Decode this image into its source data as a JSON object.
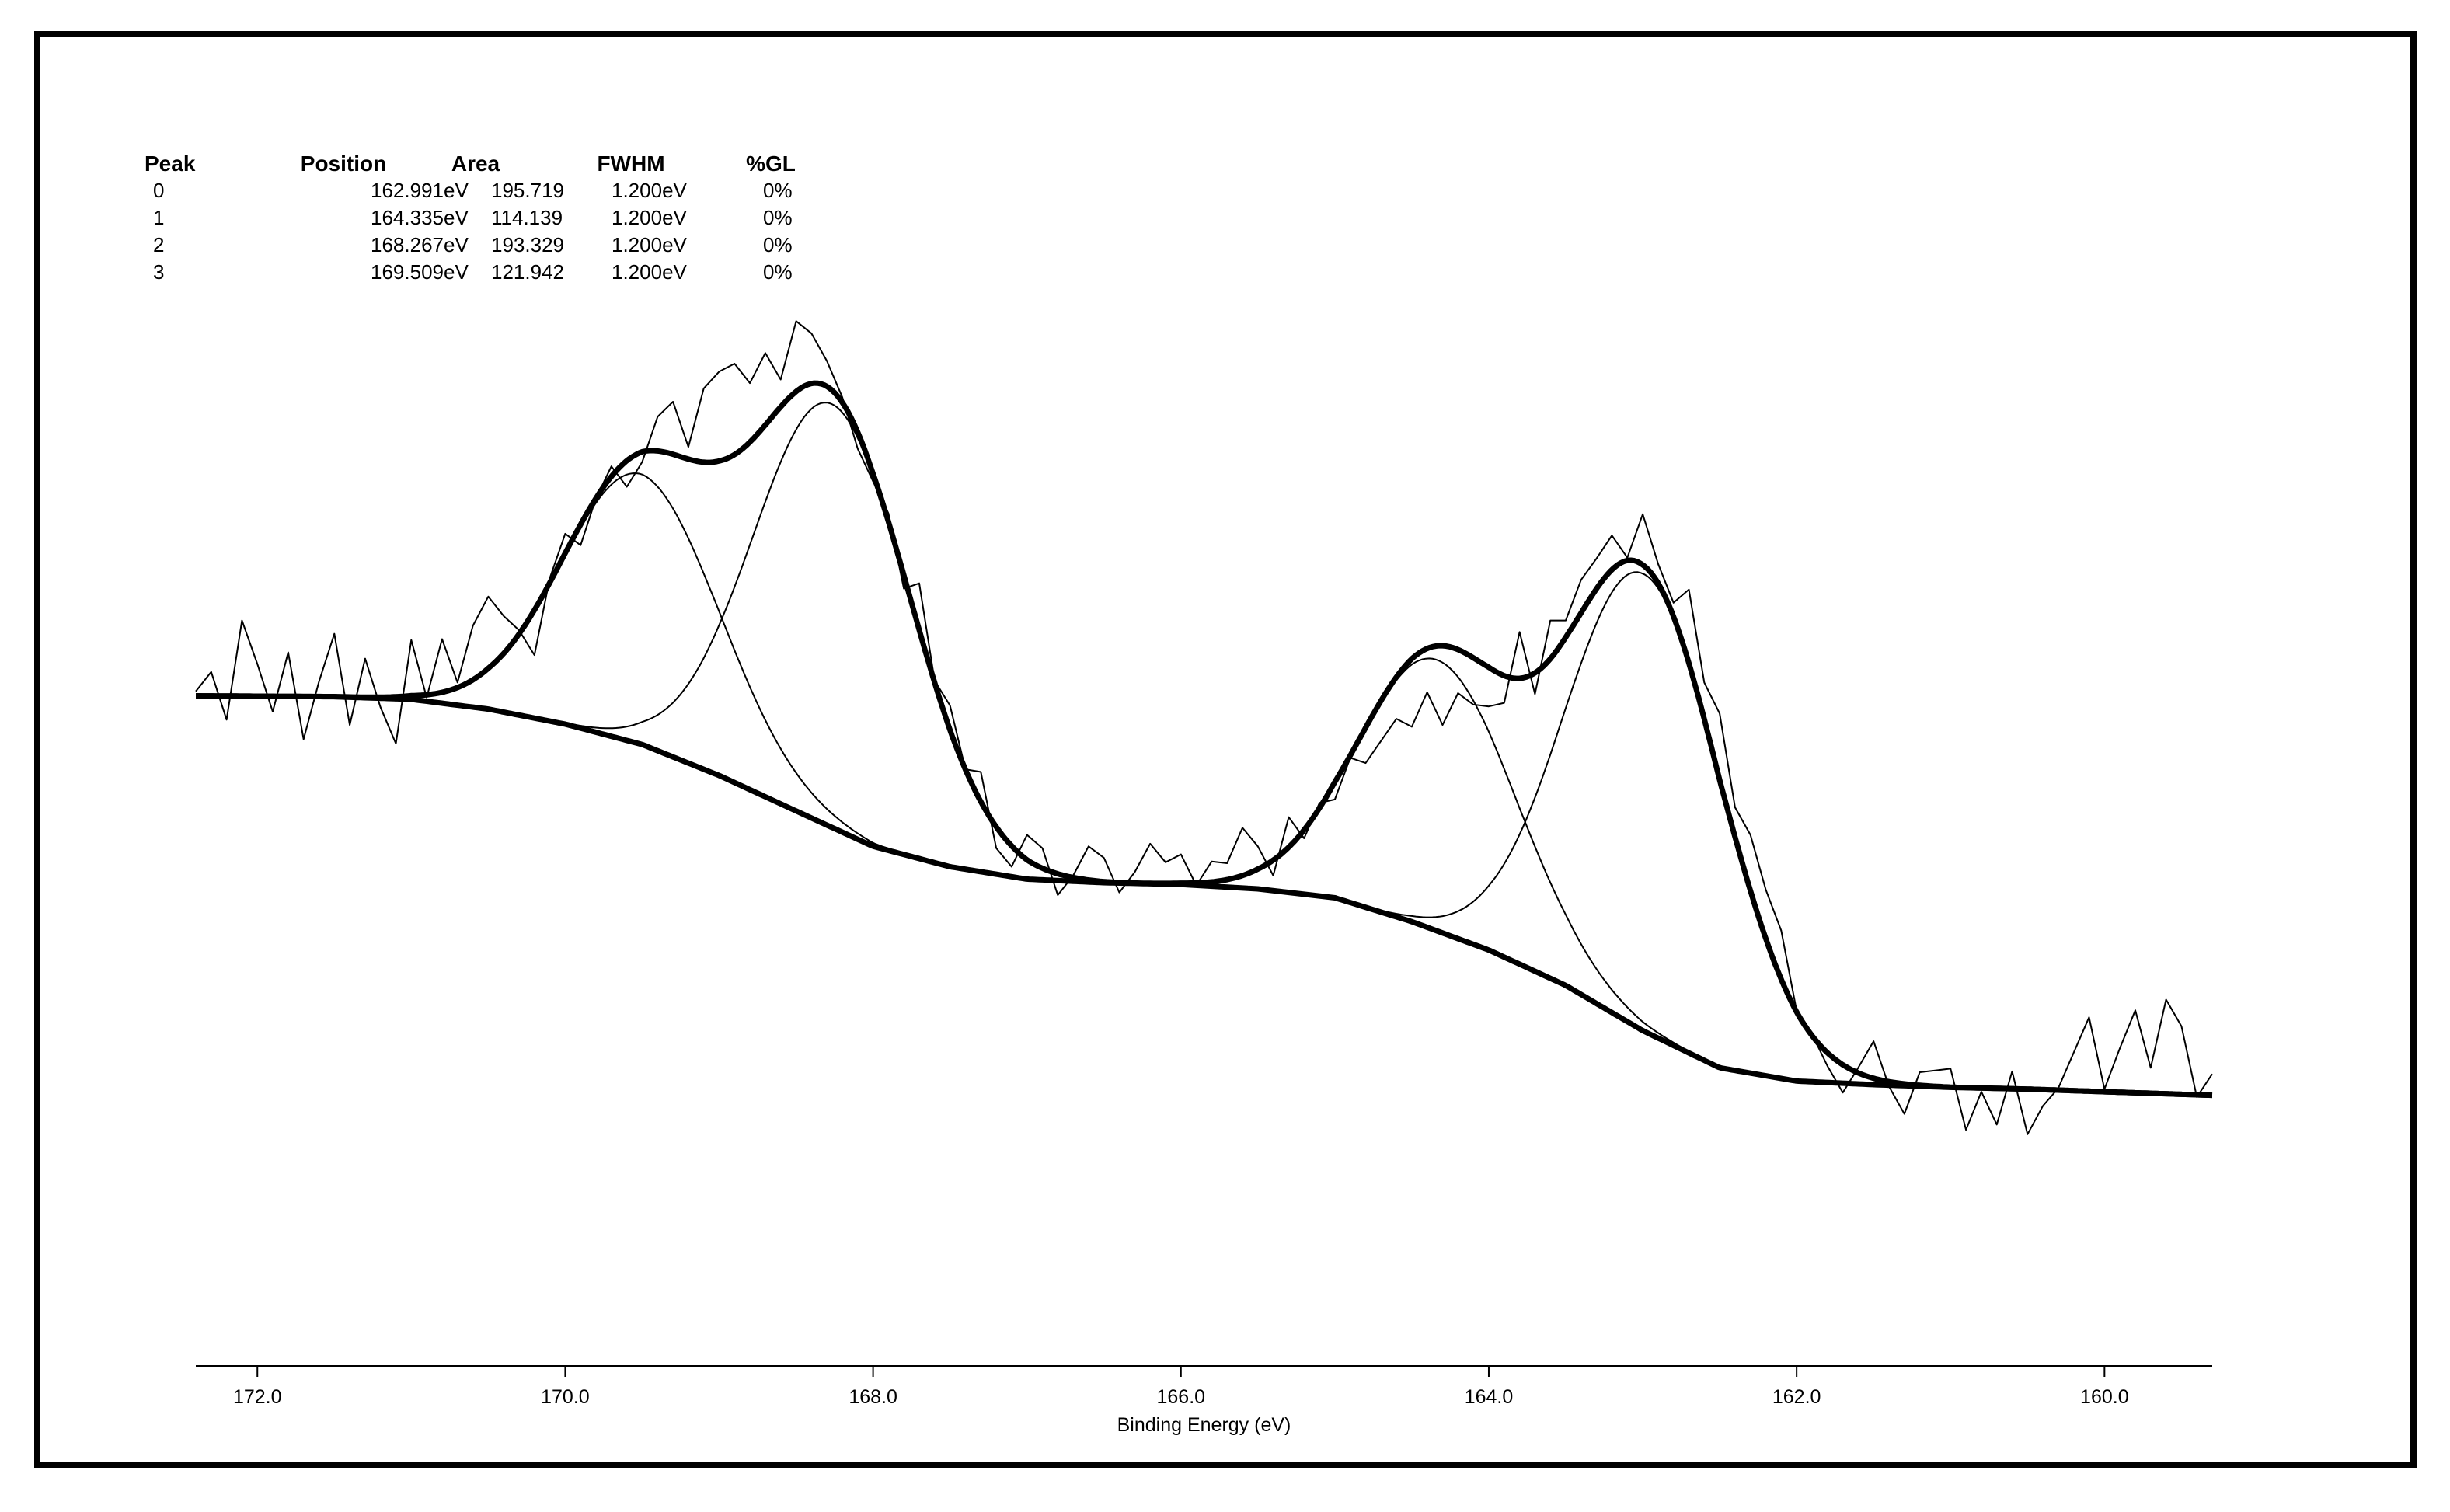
{
  "chart_data": {
    "type": "line",
    "title": "",
    "xlabel": "Binding Energy (eV)",
    "ylabel": "",
    "xlim": [
      172.4,
      159.3
    ],
    "x_reversed": true,
    "y_units": "normalized intensity",
    "ylim": [
      0,
      1
    ],
    "grid": false,
    "x_ticks": [
      "172.0",
      "170.0",
      "168.0",
      "166.0",
      "164.0",
      "162.0",
      "160.0"
    ],
    "peak_table": {
      "headers": [
        "Peak",
        "Position",
        "Area",
        "FWHM",
        "%GL"
      ],
      "rows": [
        [
          "0",
          "162.991eV",
          "195.719",
          "1.200eV",
          "0%"
        ],
        [
          "1",
          "164.335eV",
          "114.139",
          "1.200eV",
          "0%"
        ],
        [
          "2",
          "168.267eV",
          "193.329",
          "1.200eV",
          "0%"
        ],
        [
          "3",
          "169.509eV",
          "121.942",
          "1.200eV",
          "0%"
        ]
      ]
    },
    "fit_peaks": [
      {
        "peak": "0",
        "position": 162.991,
        "fwhm": 1.2,
        "height": 0.516
      },
      {
        "peak": "1",
        "position": 164.335,
        "fwhm": 1.2,
        "height": 0.306
      },
      {
        "peak": "2",
        "position": 168.267,
        "fwhm": 1.2,
        "height": 0.478
      },
      {
        "peak": "3",
        "position": 169.509,
        "fwhm": 1.2,
        "height": 0.305
      }
    ],
    "background": {
      "x": [
        172.4,
        171.5,
        171.0,
        170.5,
        170.0,
        169.5,
        169.0,
        168.5,
        168.0,
        167.5,
        167.0,
        166.5,
        166.0,
        165.5,
        165.0,
        164.5,
        164.0,
        163.5,
        163.0,
        162.5,
        162.0,
        161.5,
        161.0,
        160.5,
        160.0,
        159.3
      ],
      "y": [
        0.625,
        0.624,
        0.621,
        0.61,
        0.593,
        0.57,
        0.535,
        0.495,
        0.455,
        0.432,
        0.418,
        0.414,
        0.412,
        0.407,
        0.397,
        0.37,
        0.338,
        0.298,
        0.247,
        0.205,
        0.19,
        0.186,
        0.183,
        0.181,
        0.178,
        0.174
      ]
    },
    "raw_spectrum": {
      "x": [
        172.4,
        172.3,
        172.2,
        172.1,
        172.0,
        171.9,
        171.8,
        171.7,
        171.6,
        171.5,
        171.4,
        171.3,
        171.2,
        171.1,
        171.0,
        170.9,
        170.8,
        170.7,
        170.6,
        170.5,
        170.4,
        170.3,
        170.2,
        170.1,
        170.0,
        169.9,
        169.8,
        169.7,
        169.6,
        169.5,
        169.4,
        169.3,
        169.2,
        169.1,
        169.0,
        168.9,
        168.8,
        168.7,
        168.6,
        168.5,
        168.4,
        168.3,
        168.2,
        168.1,
        168.0,
        167.9,
        167.8,
        167.7,
        167.6,
        167.5,
        167.4,
        167.3,
        167.2,
        167.1,
        167.0,
        166.9,
        166.8,
        166.7,
        166.6,
        166.5,
        166.4,
        166.3,
        166.2,
        166.1,
        166.0,
        165.9,
        165.8,
        165.7,
        165.6,
        165.5,
        165.4,
        165.3,
        165.2,
        165.1,
        165.0,
        164.9,
        164.8,
        164.7,
        164.6,
        164.5,
        164.4,
        164.3,
        164.2,
        164.1,
        164.0,
        163.9,
        163.8,
        163.7,
        163.6,
        163.5,
        163.4,
        163.3,
        163.2,
        163.1,
        163.0,
        162.9,
        162.8,
        162.7,
        162.6,
        162.5,
        162.4,
        162.3,
        162.2,
        162.1,
        162.0,
        161.9,
        161.8,
        161.7,
        161.6,
        161.5,
        161.4,
        161.3,
        161.2,
        161.1,
        161.0,
        160.9,
        160.8,
        160.7,
        160.6,
        160.5,
        160.4,
        160.3,
        160.2,
        160.1,
        160.0,
        159.9,
        159.8,
        159.7,
        159.6,
        159.5,
        159.4,
        159.3
      ],
      "y": [
        0.63,
        0.652,
        0.598,
        0.71,
        0.661,
        0.607,
        0.674,
        0.576,
        0.641,
        0.695,
        0.592,
        0.667,
        0.612,
        0.571,
        0.688,
        0.623,
        0.689,
        0.64,
        0.704,
        0.737,
        0.715,
        0.699,
        0.671,
        0.758,
        0.808,
        0.795,
        0.848,
        0.884,
        0.861,
        0.889,
        0.94,
        0.957,
        0.906,
        0.972,
        0.991,
        1.0,
        0.978,
        1.012,
        0.982,
        1.048,
        1.034,
        1.003,
        0.962,
        0.904,
        0.867,
        0.831,
        0.746,
        0.752,
        0.642,
        0.614,
        0.542,
        0.539,
        0.453,
        0.432,
        0.468,
        0.453,
        0.4,
        0.422,
        0.455,
        0.442,
        0.403,
        0.426,
        0.458,
        0.437,
        0.446,
        0.411,
        0.438,
        0.436,
        0.476,
        0.455,
        0.422,
        0.488,
        0.464,
        0.504,
        0.508,
        0.555,
        0.549,
        0.574,
        0.599,
        0.59,
        0.629,
        0.592,
        0.628,
        0.615,
        0.613,
        0.617,
        0.697,
        0.627,
        0.71,
        0.71,
        0.756,
        0.78,
        0.806,
        0.781,
        0.83,
        0.774,
        0.73,
        0.745,
        0.64,
        0.605,
        0.499,
        0.468,
        0.406,
        0.36,
        0.269,
        0.243,
        0.207,
        0.177,
        0.205,
        0.235,
        0.184,
        0.153,
        0.2,
        0.202,
        0.204,
        0.135,
        0.178,
        0.141,
        0.201,
        0.13,
        0.162,
        0.182,
        0.222,
        0.262,
        0.181,
        0.227,
        0.27,
        0.205,
        0.282,
        0.252,
        0.172,
        0.198
      ]
    },
    "series": [
      {
        "role": "raw_spectrum",
        "style": "thin"
      },
      {
        "role": "component",
        "peak": "0",
        "style": "thin"
      },
      {
        "role": "component",
        "peak": "1",
        "style": "thin"
      },
      {
        "role": "component",
        "peak": "2",
        "style": "thin"
      },
      {
        "role": "component",
        "peak": "3",
        "style": "thin"
      },
      {
        "role": "background",
        "style": "thick"
      },
      {
        "role": "envelope",
        "style": "thick"
      }
    ],
    "colors": {
      "line": "#000000",
      "background": "#ffffff"
    }
  }
}
